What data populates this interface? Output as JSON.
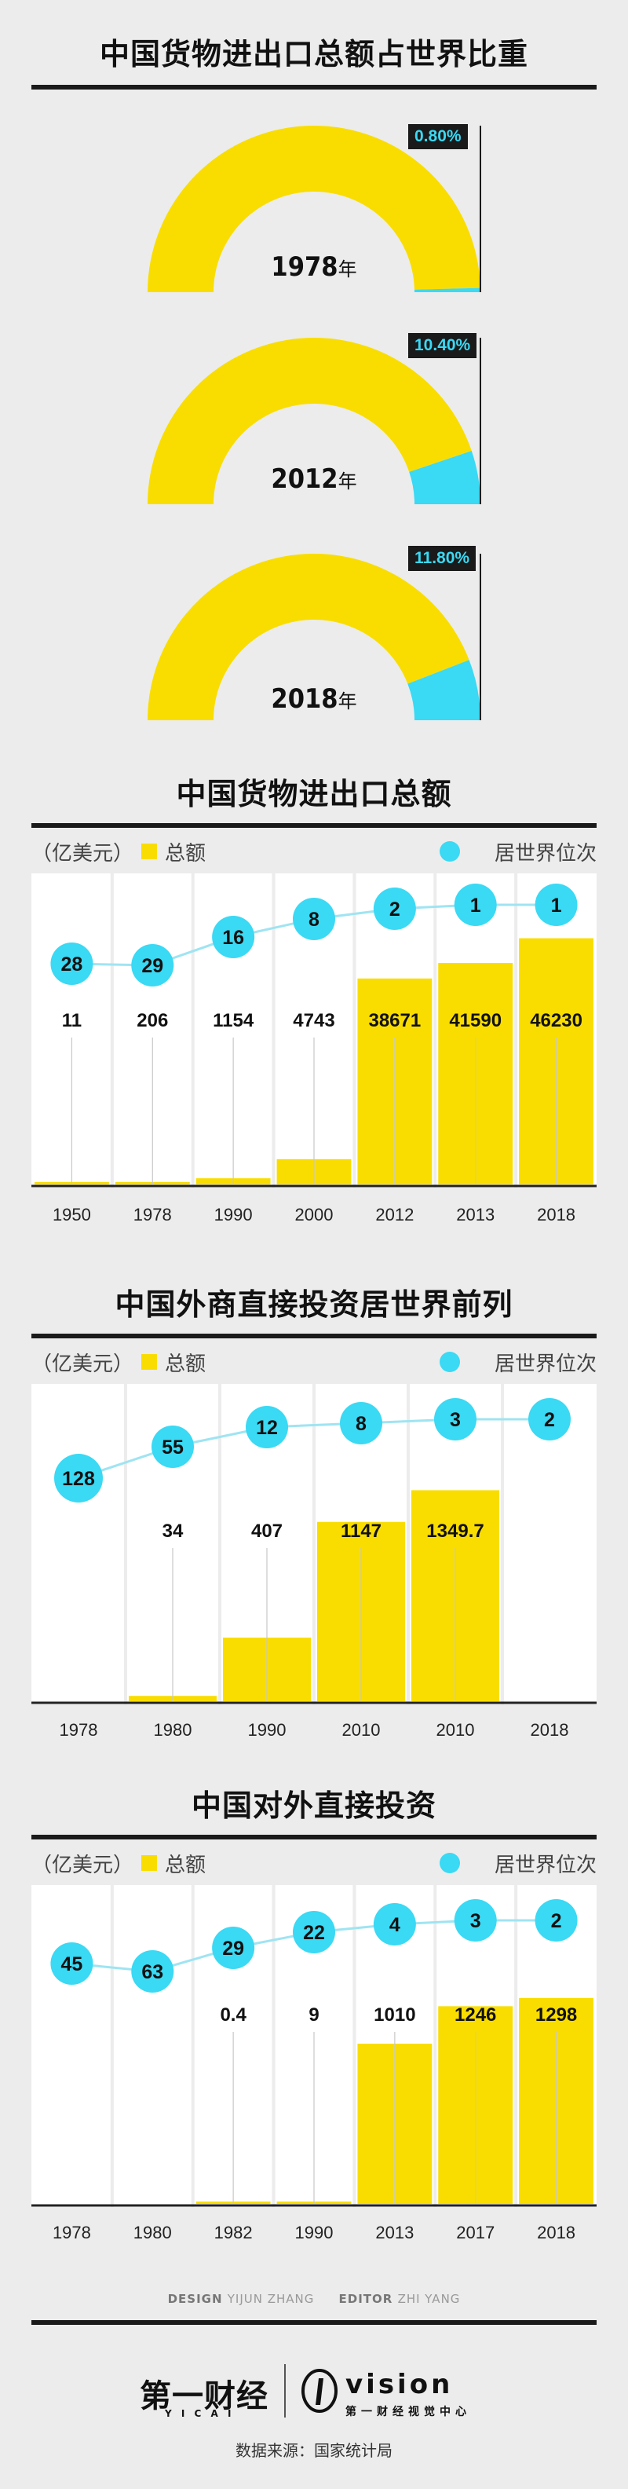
{
  "section1": {
    "title": "中国货物进出口总额占世界比重",
    "gauges": [
      {
        "year": "1978",
        "unit": "年",
        "pct_label": "0.80%",
        "pct": 0.8
      },
      {
        "year": "2012",
        "unit": "年",
        "pct_label": "10.40%",
        "pct": 10.4
      },
      {
        "year": "2018",
        "unit": "年",
        "pct_label": "11.80%",
        "pct": 11.8
      }
    ]
  },
  "colors": {
    "yellow": "#f9dd00",
    "cyan": "#3ad9f4",
    "dark": "#1a1a1a"
  },
  "legend": {
    "total": "总额",
    "rank": "居世界位次"
  },
  "chart_data": [
    {
      "type": "bar",
      "title": "中国货物进出口总额",
      "unit_label": "（亿美元）",
      "categories": [
        "1950",
        "1978",
        "1990",
        "2000",
        "2012",
        "2013",
        "2018"
      ],
      "value_labels": [
        "11",
        "206",
        "1154",
        "4743",
        "38671",
        "41590",
        "46230"
      ],
      "values": [
        11,
        206,
        1154,
        4743,
        38671,
        41590,
        46230
      ],
      "ranks": [
        28,
        29,
        16,
        8,
        2,
        1,
        1
      ],
      "ymax": 59000
    },
    {
      "type": "bar",
      "title": "中国外商直接投资居世界前列",
      "unit_label": "（亿美元）",
      "categories": [
        "1978",
        "1980",
        "1990",
        "2010",
        "2010",
        "2018"
      ],
      "value_labels": [
        "",
        "34",
        "407",
        "1147",
        "1349.7",
        ""
      ],
      "values": [
        0,
        34,
        407,
        1147,
        1349.7,
        0
      ],
      "ranks": [
        128,
        55,
        12,
        8,
        3,
        2
      ],
      "ymax": 2050
    },
    {
      "type": "bar",
      "title": "中国对外直接投资",
      "unit_label": "（亿美元）",
      "categories": [
        "1978",
        "1980",
        "1982",
        "1990",
        "2013",
        "2017",
        "2018"
      ],
      "value_labels": [
        "",
        "",
        "0.4",
        "9",
        "1010",
        "1246",
        "1298"
      ],
      "values": [
        0,
        0,
        0.4,
        9,
        1010,
        1246,
        1298
      ],
      "ranks": [
        45,
        63,
        29,
        22,
        4,
        3,
        2
      ],
      "ymax": 2030
    }
  ],
  "credits": {
    "design_label": "DESIGN",
    "design_name": "YIJUN ZHANG",
    "editor_label": "EDITOR",
    "editor_name": "ZHI YANG"
  },
  "footer": {
    "brand": "第一财经",
    "brand_sub": "Y I C A I",
    "vision": "vision",
    "vision_sub": "第一财经视觉中心",
    "source": "数据来源：国家统计局"
  }
}
